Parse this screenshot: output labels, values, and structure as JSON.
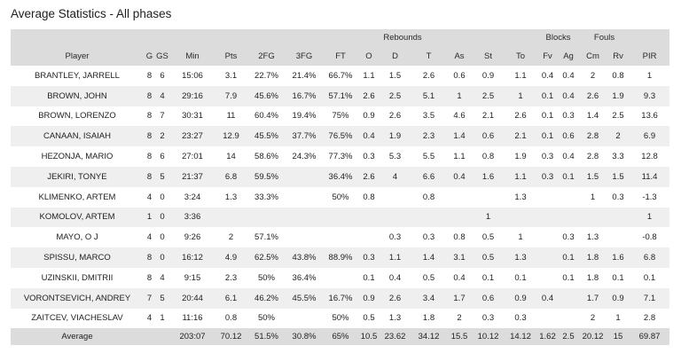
{
  "title": "Average Statistics - All phases",
  "groups": {
    "rebounds": "Rebounds",
    "blocks": "Blocks",
    "fouls": "Fouls"
  },
  "columns": [
    "Player",
    "G",
    "GS",
    "Min",
    "Pts",
    "2FG",
    "3FG",
    "FT",
    "O",
    "D",
    "T",
    "As",
    "St",
    "To",
    "Fv",
    "Ag",
    "Cm",
    "Rv",
    "PIR"
  ],
  "rows": [
    [
      "BRANTLEY, JARRELL",
      "8",
      "6",
      "15:06",
      "3.1",
      "22.7%",
      "21.4%",
      "66.7%",
      "1.1",
      "1.5",
      "2.6",
      "0.6",
      "0.9",
      "1.1",
      "0.4",
      "0.4",
      "2",
      "0.8",
      "1"
    ],
    [
      "BROWN, JOHN",
      "8",
      "4",
      "29:16",
      "7.9",
      "45.6%",
      "16.7%",
      "57.1%",
      "2.6",
      "2.5",
      "5.1",
      "1",
      "2.5",
      "1",
      "0.1",
      "0.4",
      "2.6",
      "1.9",
      "9.3"
    ],
    [
      "BROWN, LORENZO",
      "8",
      "7",
      "30:31",
      "11",
      "60.4%",
      "19.4%",
      "75%",
      "0.9",
      "2.6",
      "3.5",
      "4.6",
      "2.1",
      "2.6",
      "0.1",
      "0.3",
      "1.4",
      "2.5",
      "13.6"
    ],
    [
      "CANAAN, ISAIAH",
      "8",
      "2",
      "23:27",
      "12.9",
      "45.5%",
      "37.7%",
      "76.5%",
      "0.4",
      "1.9",
      "2.3",
      "1.4",
      "0.6",
      "2.1",
      "0.1",
      "0.6",
      "2.8",
      "2",
      "6.9"
    ],
    [
      "HEZONJA, MARIO",
      "8",
      "6",
      "27:01",
      "14",
      "58.6%",
      "24.3%",
      "77.3%",
      "0.3",
      "5.3",
      "5.5",
      "1.1",
      "0.8",
      "1.9",
      "0.3",
      "0.4",
      "2.8",
      "3.3",
      "12.8"
    ],
    [
      "JEKIRI, TONYE",
      "8",
      "5",
      "21:37",
      "6.8",
      "59.5%",
      "",
      "36.4%",
      "2.6",
      "4",
      "6.6",
      "0.4",
      "1.6",
      "1.1",
      "0.3",
      "0.1",
      "1.5",
      "1.5",
      "11.4"
    ],
    [
      "KLIMENKO, ARTEM",
      "4",
      "0",
      "3:24",
      "1.3",
      "33.3%",
      "",
      "50%",
      "0.8",
      "",
      "0.8",
      "",
      "",
      "1.3",
      "",
      "",
      "1",
      "0.3",
      "-1.3"
    ],
    [
      "KOMOLOV, ARTEM",
      "1",
      "0",
      "3:36",
      "",
      "",
      "",
      "",
      "",
      "",
      "",
      "",
      "1",
      "",
      "",
      "",
      "",
      "",
      "1"
    ],
    [
      "MAYO, O J",
      "4",
      "0",
      "9:26",
      "2",
      "57.1%",
      "",
      "",
      "",
      "0.3",
      "0.3",
      "0.8",
      "0.5",
      "1",
      "",
      "0.3",
      "1.3",
      "",
      "-0.8"
    ],
    [
      "SPISSU, MARCO",
      "8",
      "0",
      "16:12",
      "4.9",
      "62.5%",
      "43.8%",
      "88.9%",
      "0.3",
      "1.1",
      "1.4",
      "3.1",
      "0.5",
      "1.3",
      "",
      "0.1",
      "1.8",
      "1.6",
      "6.8"
    ],
    [
      "UZINSKII, DMITRII",
      "8",
      "4",
      "9:15",
      "2.3",
      "50%",
      "36.4%",
      "",
      "0.1",
      "0.4",
      "0.5",
      "0.4",
      "0.1",
      "0.1",
      "",
      "0.1",
      "1.8",
      "0.1",
      "0.1"
    ],
    [
      "VORONTSEVICH, ANDREY",
      "7",
      "5",
      "20:44",
      "6.1",
      "46.2%",
      "45.5%",
      "16.7%",
      "0.9",
      "2.6",
      "3.4",
      "1.7",
      "0.6",
      "0.9",
      "0.4",
      "",
      "1.7",
      "0.9",
      "7.1"
    ],
    [
      "ZAITCEV, VIACHESLAV",
      "4",
      "1",
      "11:16",
      "0.8",
      "50%",
      "",
      "50%",
      "0.5",
      "1.3",
      "1.8",
      "2",
      "0.3",
      "0.3",
      "",
      "",
      "2",
      "1",
      "2.8"
    ]
  ],
  "average": [
    "Average",
    "",
    "",
    "203:07",
    "70.12",
    "51.5%",
    "30.8%",
    "65%",
    "10.5",
    "23.62",
    "34.12",
    "15.5",
    "10.12",
    "14.12",
    "1.62",
    "2.5",
    "20.12",
    "15",
    "69.87"
  ]
}
